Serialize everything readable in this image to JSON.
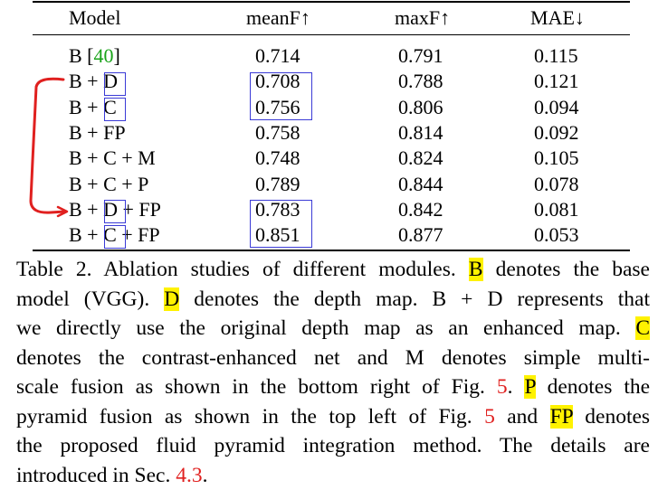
{
  "table": {
    "headers": [
      "Model",
      "meanF↑",
      "maxF↑",
      "MAE↓"
    ],
    "rows": [
      {
        "model_parts": [
          "B ["
        ],
        "ref": "40",
        "model_suffix": "]",
        "meanF": "0.714",
        "maxF": "0.791",
        "mae": "0.115"
      },
      {
        "model": "B + D",
        "meanF": "0.708",
        "maxF": "0.788",
        "mae": "0.121"
      },
      {
        "model": "B + C",
        "meanF": "0.756",
        "maxF": "0.806",
        "mae": "0.094"
      },
      {
        "model": "B + FP",
        "meanF": "0.758",
        "maxF": "0.814",
        "mae": "0.092"
      },
      {
        "model": "B + C + M",
        "meanF": "0.748",
        "maxF": "0.824",
        "mae": "0.105"
      },
      {
        "model": "B + C + P",
        "meanF": "0.789",
        "maxF": "0.844",
        "mae": "0.078"
      },
      {
        "model": "B + D + FP",
        "meanF": "0.783",
        "maxF": "0.842",
        "mae": "0.081"
      },
      {
        "model": "B + C + FP",
        "meanF": "0.851",
        "maxF": "0.877",
        "mae": "0.053"
      }
    ]
  },
  "caption": {
    "l1a": "Table 2. Ablation studies of different modules.",
    "l1b": "B",
    "l1c": "denotes the base",
    "l2a": "model (VGG).",
    "l2b": "D",
    "l2c": "denotes the depth map.  B + D represents that",
    "l3a": "we directly use the original depth map as an enhanced map.",
    "l3b": "C",
    "l4": "denotes the contrast-enhanced net and M denotes simple multi-",
    "l5a": "scale fusion as shown in the bottom right of Fig.",
    "l5b": "5",
    "l5c": ".",
    "l5d": "P",
    "l5e": "denotes the",
    "l6a": "pyramid fusion as shown in the top left of Fig.",
    "l6b": "5",
    "l6c": "and",
    "l6d": "FP",
    "l6e": "denotes",
    "l7": "the proposed fluid pyramid integration method.  The details are",
    "l8a": "introduced in Sec.",
    "l8b": "4.3",
    "l8c": "."
  },
  "colors": {
    "highlight": "#fff200",
    "link_red": "#e0201f",
    "link_green": "#19a319",
    "box_blue": "#3b3bd6",
    "annotation_red": "#e0201f"
  }
}
